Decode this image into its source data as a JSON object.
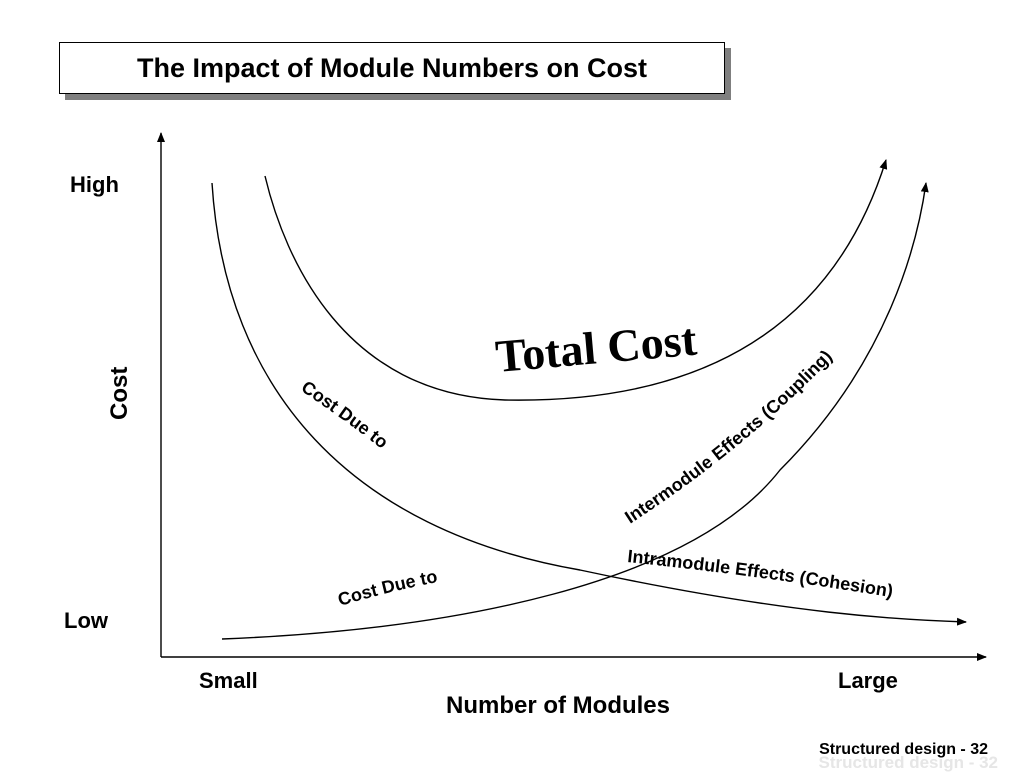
{
  "slide": {
    "title": "The Impact of Module Numbers on Cost",
    "footer": "Structured design - 32"
  },
  "axes": {
    "y_label": "Cost",
    "y_high": "High",
    "y_low": "Low",
    "x_label": "Number of Modules",
    "x_small": "Small",
    "x_large": "Large"
  },
  "curves": {
    "total_label": "Total Cost",
    "intramodule_label_1": "Cost Due to",
    "intramodule_label_2": "Intramodule Effects (Cohesion)",
    "intermodule_label_1": "Cost Due to",
    "intermodule_label_2": "Intermodule Effects (Coupling)"
  }
}
